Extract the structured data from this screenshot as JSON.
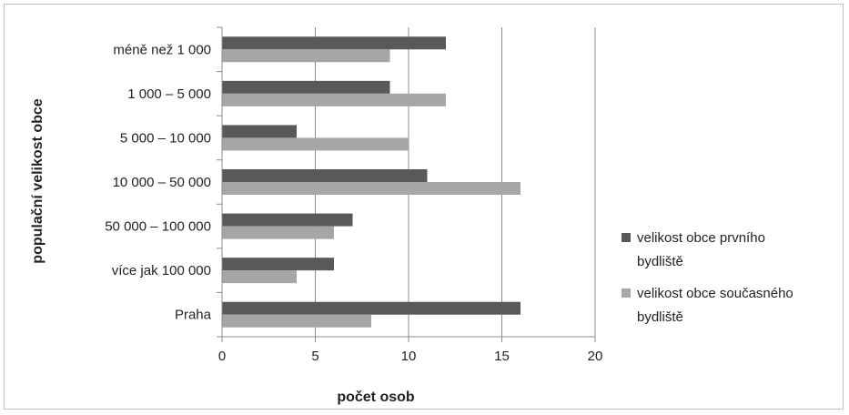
{
  "chart_data": {
    "type": "bar",
    "orientation": "horizontal",
    "categories": [
      "méně než 1 000",
      "1 000 – 5 000",
      "5 000 – 10 000",
      "10 000 – 50 000",
      "50 000 – 100 000",
      "více jak 100 000",
      "Praha"
    ],
    "series": [
      {
        "name": "velikost obce prvního bydliště",
        "color": "#595959",
        "values": [
          12,
          9,
          4,
          11,
          7,
          6,
          16
        ]
      },
      {
        "name": "velikost obce současného bydliště",
        "color": "#a6a6a6",
        "values": [
          9,
          12,
          10,
          16,
          6,
          4,
          8
        ]
      }
    ],
    "xlim": [
      0,
      20
    ],
    "xticks": [
      "0",
      "5",
      "10",
      "15",
      "20"
    ],
    "xlabel": "počet osob",
    "ylabel": "populační velikost obce",
    "grid": "vertical",
    "legend": "right"
  }
}
